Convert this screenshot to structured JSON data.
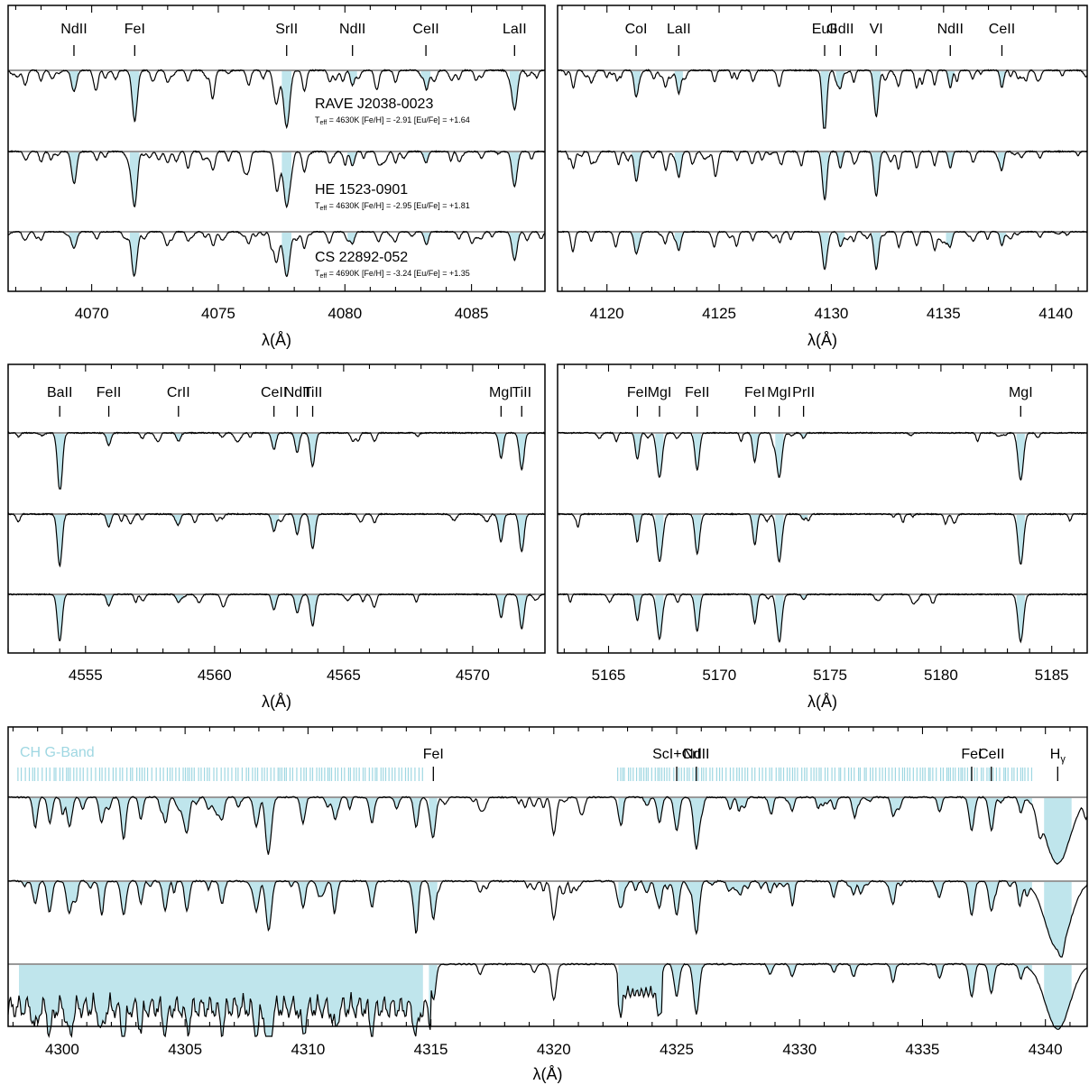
{
  "chart_data": [
    {
      "type": "line",
      "id": "panel-a",
      "xlabel": "λ(Å)",
      "xlim": [
        4066.7,
        4087.9
      ],
      "xticks": [
        4070,
        4075,
        4080,
        4085
      ],
      "ylim": [
        0,
        1
      ],
      "lines": [
        {
          "label": "NdII",
          "x": 4069.3
        },
        {
          "label": "FeI",
          "x": 4071.7
        },
        {
          "label": "SrII",
          "x": 4077.7
        },
        {
          "label": "NdII",
          "x": 4080.3
        },
        {
          "label": "CeII",
          "x": 4083.2
        },
        {
          "label": "LaII",
          "x": 4086.7
        }
      ],
      "stars": [
        {
          "name": "RAVE J2038-0023",
          "teff": "4630K",
          "feh": "-2.91",
          "eufe": "+1.64"
        },
        {
          "name": "HE 1523-0901",
          "teff": "4630K",
          "feh": "-2.95",
          "eufe": "+1.81"
        },
        {
          "name": "CS 22892-052",
          "teff": "4690K",
          "feh": "-3.24",
          "eufe": "+1.35"
        }
      ],
      "features": [
        {
          "x": 4067.4,
          "depth": 0.15,
          "width": 0.08
        },
        {
          "x": 4068.0,
          "depth": 0.18,
          "width": 0.07
        },
        {
          "x": 4069.3,
          "depth": 0.35,
          "width": 0.1
        },
        {
          "x": 4070.2,
          "depth": 0.15,
          "width": 0.07
        },
        {
          "x": 4071.7,
          "depth": 0.85,
          "width": 0.1
        },
        {
          "x": 4073.0,
          "depth": 0.2,
          "width": 0.08
        },
        {
          "x": 4073.8,
          "depth": 0.18,
          "width": 0.07
        },
        {
          "x": 4074.8,
          "depth": 0.3,
          "width": 0.08
        },
        {
          "x": 4076.2,
          "depth": 0.25,
          "width": 0.08
        },
        {
          "x": 4077.3,
          "depth": 0.55,
          "width": 0.1
        },
        {
          "x": 4077.7,
          "depth": 0.95,
          "width": 0.12
        },
        {
          "x": 4078.4,
          "depth": 0.35,
          "width": 0.08
        },
        {
          "x": 4079.4,
          "depth": 0.2,
          "width": 0.07
        },
        {
          "x": 4080.3,
          "depth": 0.25,
          "width": 0.08
        },
        {
          "x": 4081.3,
          "depth": 0.15,
          "width": 0.07
        },
        {
          "x": 4082.0,
          "depth": 0.2,
          "width": 0.07
        },
        {
          "x": 4083.2,
          "depth": 0.2,
          "width": 0.08
        },
        {
          "x": 4084.5,
          "depth": 0.15,
          "width": 0.07
        },
        {
          "x": 4085.4,
          "depth": 0.12,
          "width": 0.07
        },
        {
          "x": 4086.7,
          "depth": 0.6,
          "width": 0.1
        }
      ]
    },
    {
      "type": "line",
      "id": "panel-b",
      "xlabel": "λ(Å)",
      "xlim": [
        4117.8,
        4141.4
      ],
      "xticks": [
        4120,
        4125,
        4130,
        4135,
        4140
      ],
      "ylim": [
        0,
        1
      ],
      "lines": [
        {
          "label": "CoI",
          "x": 4121.3
        },
        {
          "label": "LaII",
          "x": 4123.2
        },
        {
          "label": "EuII",
          "x": 4129.7
        },
        {
          "label": "GdII",
          "x": 4130.4
        },
        {
          "label": "VI",
          "x": 4132.0
        },
        {
          "label": "NdII",
          "x": 4135.3
        },
        {
          "label": "CeII",
          "x": 4137.6
        }
      ],
      "features": [
        {
          "x": 4118.5,
          "depth": 0.3,
          "width": 0.08
        },
        {
          "x": 4119.3,
          "depth": 0.2,
          "width": 0.07
        },
        {
          "x": 4121.3,
          "depth": 0.45,
          "width": 0.09
        },
        {
          "x": 4122.6,
          "depth": 0.25,
          "width": 0.07
        },
        {
          "x": 4123.2,
          "depth": 0.4,
          "width": 0.09
        },
        {
          "x": 4124.8,
          "depth": 0.2,
          "width": 0.07
        },
        {
          "x": 4125.8,
          "depth": 0.15,
          "width": 0.07
        },
        {
          "x": 4126.5,
          "depth": 0.18,
          "width": 0.07
        },
        {
          "x": 4127.7,
          "depth": 0.15,
          "width": 0.07
        },
        {
          "x": 4129.7,
          "depth": 0.8,
          "width": 0.1
        },
        {
          "x": 4130.4,
          "depth": 0.3,
          "width": 0.08
        },
        {
          "x": 4131.0,
          "depth": 0.2,
          "width": 0.07
        },
        {
          "x": 4132.0,
          "depth": 0.8,
          "width": 0.1
        },
        {
          "x": 4133.0,
          "depth": 0.25,
          "width": 0.07
        },
        {
          "x": 4133.8,
          "depth": 0.3,
          "width": 0.08
        },
        {
          "x": 4134.6,
          "depth": 0.25,
          "width": 0.07
        },
        {
          "x": 4135.3,
          "depth": 0.3,
          "width": 0.08
        },
        {
          "x": 4136.3,
          "depth": 0.15,
          "width": 0.07
        },
        {
          "x": 4137.6,
          "depth": 0.3,
          "width": 0.08
        },
        {
          "x": 4139.3,
          "depth": 0.12,
          "width": 0.07
        }
      ]
    },
    {
      "type": "line",
      "id": "panel-c",
      "xlabel": "λ(Å)",
      "xlim": [
        4552.0,
        4572.8
      ],
      "xticks": [
        4555,
        4560,
        4565,
        4570
      ],
      "ylim": [
        0,
        1
      ],
      "lines": [
        {
          "label": "BaII",
          "x": 4554.0
        },
        {
          "label": "FeII",
          "x": 4555.9
        },
        {
          "label": "CrII",
          "x": 4558.6
        },
        {
          "label": "CeII",
          "x": 4562.3
        },
        {
          "label": "NdII",
          "x": 4563.2
        },
        {
          "label": "TiII",
          "x": 4563.8
        },
        {
          "label": "MgI",
          "x": 4571.1
        },
        {
          "label": "TiII",
          "x": 4571.9
        }
      ],
      "features": [
        {
          "x": 4554.0,
          "depth": 0.9,
          "width": 0.09
        },
        {
          "x": 4555.9,
          "depth": 0.22,
          "width": 0.08
        },
        {
          "x": 4557.2,
          "depth": 0.1,
          "width": 0.07
        },
        {
          "x": 4558.6,
          "depth": 0.15,
          "width": 0.08
        },
        {
          "x": 4560.3,
          "depth": 0.08,
          "width": 0.07
        },
        {
          "x": 4562.3,
          "depth": 0.3,
          "width": 0.08
        },
        {
          "x": 4563.2,
          "depth": 0.35,
          "width": 0.08
        },
        {
          "x": 4563.8,
          "depth": 0.6,
          "width": 0.09
        },
        {
          "x": 4566.2,
          "depth": 0.15,
          "width": 0.07
        },
        {
          "x": 4571.1,
          "depth": 0.45,
          "width": 0.08
        },
        {
          "x": 4571.9,
          "depth": 0.65,
          "width": 0.09
        }
      ]
    },
    {
      "type": "line",
      "id": "panel-d",
      "xlabel": "λ(Å)",
      "xlim": [
        5162.7,
        5186.6
      ],
      "xticks": [
        5165,
        5170,
        5175,
        5180,
        5185
      ],
      "ylim": [
        0,
        1
      ],
      "lines": [
        {
          "label": "FeI",
          "x": 5166.3
        },
        {
          "label": "MgI",
          "x": 5167.3
        },
        {
          "label": "FeII",
          "x": 5169.0
        },
        {
          "label": "FeI",
          "x": 5171.6
        },
        {
          "label": "MgI",
          "x": 5172.7
        },
        {
          "label": "PrII",
          "x": 5173.8
        },
        {
          "label": "MgI",
          "x": 5183.6
        }
      ],
      "features": [
        {
          "x": 5166.3,
          "depth": 0.5,
          "width": 0.09
        },
        {
          "x": 5167.3,
          "depth": 0.85,
          "width": 0.12
        },
        {
          "x": 5169.0,
          "depth": 0.7,
          "width": 0.1
        },
        {
          "x": 5171.6,
          "depth": 0.55,
          "width": 0.09
        },
        {
          "x": 5172.7,
          "depth": 0.85,
          "width": 0.12
        },
        {
          "x": 5173.8,
          "depth": 0.1,
          "width": 0.08
        },
        {
          "x": 5183.6,
          "depth": 0.9,
          "width": 0.12
        }
      ]
    },
    {
      "type": "line",
      "id": "panel-e",
      "xlabel": "λ(Å)",
      "xlim": [
        4297.8,
        4341.7
      ],
      "xticks": [
        4300,
        4305,
        4310,
        4315,
        4320,
        4325,
        4330,
        4335,
        4340
      ],
      "ylim": [
        0,
        1
      ],
      "band_label": "CH G-Band",
      "band_ranges": [
        [
          4298.2,
          4314.7
        ],
        [
          4322.6,
          4339.5
        ]
      ],
      "lines": [
        {
          "label": "FeI",
          "x": 4315.1
        },
        {
          "label": "ScI+CrI",
          "x": 4325.0
        },
        {
          "label": "NdII",
          "x": 4325.8
        },
        {
          "label": "FeI",
          "x": 4337.0
        },
        {
          "label": "CeII",
          "x": 4337.8
        },
        {
          "label": "Hγ",
          "x": 4340.5
        }
      ],
      "features": [
        {
          "x": 4298.9,
          "depth": 0.3,
          "width": 0.09
        },
        {
          "x": 4299.5,
          "depth": 0.35,
          "width": 0.09
        },
        {
          "x": 4300.3,
          "depth": 0.4,
          "width": 0.1
        },
        {
          "x": 4301.6,
          "depth": 0.35,
          "width": 0.09
        },
        {
          "x": 4302.5,
          "depth": 0.45,
          "width": 0.1
        },
        {
          "x": 4303.2,
          "depth": 0.3,
          "width": 0.08
        },
        {
          "x": 4304.2,
          "depth": 0.35,
          "width": 0.09
        },
        {
          "x": 4305.1,
          "depth": 0.3,
          "width": 0.09
        },
        {
          "x": 4306.5,
          "depth": 0.3,
          "width": 0.09
        },
        {
          "x": 4307.9,
          "depth": 0.4,
          "width": 0.1
        },
        {
          "x": 4308.4,
          "depth": 0.65,
          "width": 0.11
        },
        {
          "x": 4309.8,
          "depth": 0.35,
          "width": 0.09
        },
        {
          "x": 4311.1,
          "depth": 0.3,
          "width": 0.09
        },
        {
          "x": 4312.6,
          "depth": 0.35,
          "width": 0.09
        },
        {
          "x": 4314.4,
          "depth": 0.4,
          "width": 0.09
        },
        {
          "x": 4315.1,
          "depth": 0.5,
          "width": 0.1
        },
        {
          "x": 4317.0,
          "depth": 0.15,
          "width": 0.08
        },
        {
          "x": 4319.2,
          "depth": 0.12,
          "width": 0.08
        },
        {
          "x": 4320.0,
          "depth": 0.5,
          "width": 0.1
        },
        {
          "x": 4322.7,
          "depth": 0.3,
          "width": 0.09
        },
        {
          "x": 4324.3,
          "depth": 0.35,
          "width": 0.09
        },
        {
          "x": 4325.0,
          "depth": 0.45,
          "width": 0.1
        },
        {
          "x": 4325.8,
          "depth": 0.7,
          "width": 0.11
        },
        {
          "x": 4328.8,
          "depth": 0.15,
          "width": 0.08
        },
        {
          "x": 4329.7,
          "depth": 0.18,
          "width": 0.08
        },
        {
          "x": 4331.4,
          "depth": 0.12,
          "width": 0.07
        },
        {
          "x": 4332.2,
          "depth": 0.18,
          "width": 0.08
        },
        {
          "x": 4333.8,
          "depth": 0.25,
          "width": 0.08
        },
        {
          "x": 4335.7,
          "depth": 0.2,
          "width": 0.08
        },
        {
          "x": 4337.0,
          "depth": 0.45,
          "width": 0.1
        },
        {
          "x": 4337.8,
          "depth": 0.4,
          "width": 0.1
        },
        {
          "x": 4339.0,
          "depth": 0.2,
          "width": 0.08
        },
        {
          "x": 4340.5,
          "depth": 0.9,
          "width": 0.5
        }
      ]
    }
  ],
  "colors": {
    "fill": "#bfe5ec",
    "band": "#9fd7e2",
    "spectrum": "#000000",
    "continuum": "#999999"
  }
}
